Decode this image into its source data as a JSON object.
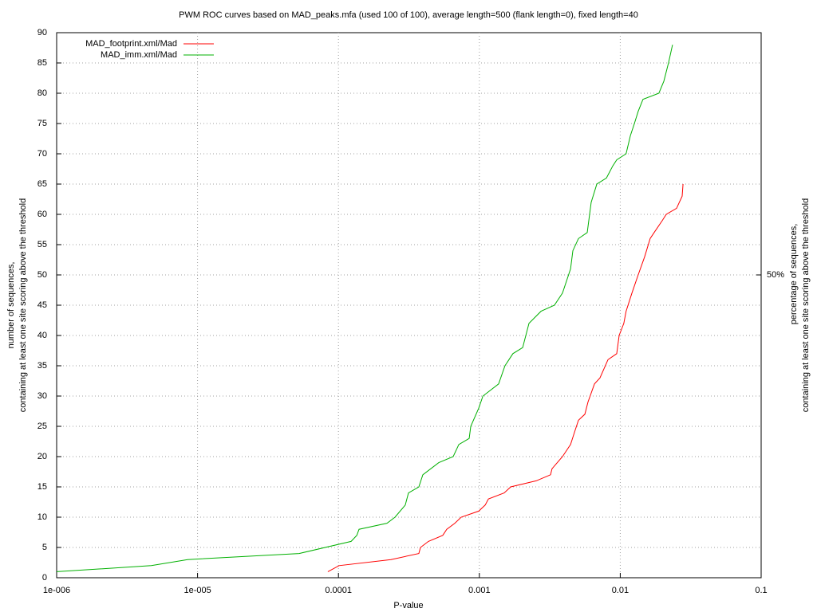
{
  "chart_data": {
    "type": "line",
    "title": "PWM ROC curves based on MAD_peaks.mfa (used 100 of 100), average length=500 (flank length=0), fixed length=40",
    "xlabel": "P-value",
    "ylabel": [
      "number of sequences,",
      "containing at least one site scoring above the threshold"
    ],
    "y2label": [
      "percentage of sequences,",
      "containing at least one site scoring above the threshold"
    ],
    "xscale": "log",
    "xlim": [
      1e-06,
      0.1
    ],
    "xticks": [
      {
        "value": 1e-06,
        "label": "1e-006"
      },
      {
        "value": 1e-05,
        "label": "1e-005"
      },
      0.0001,
      0.001,
      0.01,
      0.1
    ],
    "ylim": [
      0,
      90
    ],
    "yticks": [
      0,
      5,
      10,
      15,
      20,
      25,
      30,
      35,
      40,
      45,
      50,
      55,
      60,
      65,
      70,
      75,
      80,
      85,
      90
    ],
    "y2lim": [
      0,
      90
    ],
    "y2ticks": [
      {
        "value": 50,
        "label": "50%"
      }
    ],
    "grid": true,
    "legend": "top left",
    "series": [
      {
        "name": "MAD_footprint.xml/Mad",
        "color": "#ff0000",
        "x": [
          8.41e-05,
          0.000101,
          0.000236,
          0.000372,
          0.000382,
          0.000435,
          0.00055,
          0.000587,
          0.00067,
          0.000743,
          0.00099,
          0.0011,
          0.00116,
          0.0015,
          0.00167,
          0.00253,
          0.0032,
          0.00328,
          0.00389,
          0.00444,
          0.00473,
          0.00505,
          0.00561,
          0.0059,
          0.00656,
          0.00718,
          0.00818,
          0.00944,
          0.00982,
          0.0106,
          0.011,
          0.0121,
          0.0134,
          0.0149,
          0.0163,
          0.0174,
          0.0199,
          0.0212,
          0.0251,
          0.0275,
          0.0279
        ],
        "values": [
          1,
          2,
          3,
          4,
          5,
          6,
          7,
          8,
          9,
          10,
          11,
          12,
          13,
          14,
          15,
          16,
          17,
          18,
          20,
          22,
          24,
          26,
          27,
          29,
          32,
          33,
          36,
          37,
          40,
          42,
          44,
          47,
          50,
          53,
          56,
          57,
          59,
          60,
          61,
          63,
          65
        ]
      },
      {
        "name": "MAD_imm.xml/Mad",
        "color": "#00b000",
        "x": [
          1e-06,
          4.7e-06,
          8.5e-06,
          5.26e-05,
          0.000123,
          0.000135,
          0.00014,
          0.000221,
          0.000252,
          0.000298,
          0.000314,
          0.000372,
          0.000397,
          0.000515,
          0.000652,
          0.000715,
          0.000847,
          0.000869,
          0.00099,
          0.00106,
          0.00137,
          0.00152,
          0.00173,
          0.00203,
          0.00225,
          0.00274,
          0.00341,
          0.00389,
          0.00444,
          0.00461,
          0.00505,
          0.00583,
          0.00622,
          0.00682,
          0.00798,
          0.00885,
          0.00944,
          0.011,
          0.0118,
          0.0126,
          0.0134,
          0.0145,
          0.0188,
          0.0204,
          0.022,
          0.0235
        ],
        "values": [
          1,
          2,
          3,
          4,
          6,
          7,
          8,
          9,
          10,
          12,
          14,
          15,
          17,
          19,
          20,
          22,
          23,
          25,
          28,
          30,
          32,
          35,
          37,
          38,
          42,
          44,
          45,
          47,
          51,
          54,
          56,
          57,
          62,
          65,
          66,
          68,
          69,
          70,
          73,
          75,
          77,
          79,
          80,
          82,
          85,
          88
        ]
      }
    ]
  }
}
